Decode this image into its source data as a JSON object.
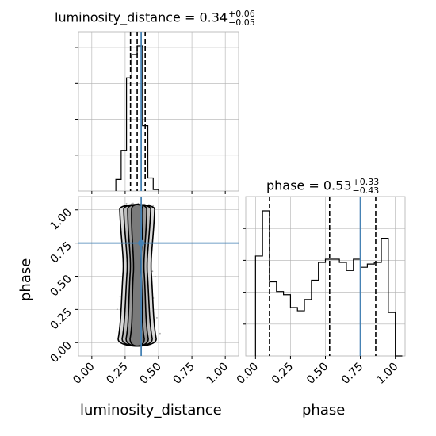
{
  "chart_data": {
    "type": "corner",
    "parameters": [
      "luminosity_distance",
      "phase"
    ],
    "injection": {
      "luminosity_distance": 0.37,
      "phase": 0.75
    },
    "colors": {
      "injection": "#4682b4",
      "hist": "#000000",
      "grid": "#b0b0b0"
    },
    "panels": [
      {
        "id": "hist-luminosity_distance",
        "type": "histogram",
        "title": {
          "name": "luminosity_distance",
          "value": "0.34",
          "plus": "+0.06",
          "minus": "−0.05"
        },
        "xlim": [
          -0.1,
          1.1
        ],
        "bin_edges": [
          0.18,
          0.22,
          0.26,
          0.3,
          0.34,
          0.38,
          0.42,
          0.46,
          0.5
        ],
        "counts": [
          0.08,
          0.28,
          0.78,
          0.94,
          1.0,
          0.45,
          0.09,
          0.01
        ],
        "quantiles": [
          0.29,
          0.34,
          0.4
        ]
      },
      {
        "id": "hist-phase",
        "type": "histogram",
        "title": {
          "name": "phase",
          "value": "0.53",
          "plus": "+0.33",
          "minus": "−0.43"
        },
        "xlim": [
          -0.07,
          1.07
        ],
        "xticks": [
          "0.00",
          "0.25",
          "0.50",
          "0.75",
          "1.00"
        ],
        "xlabel": "phase",
        "bin_edges": [
          0.0,
          0.05,
          0.1,
          0.15,
          0.2,
          0.25,
          0.3,
          0.35,
          0.4,
          0.45,
          0.5,
          0.55,
          0.6,
          0.65,
          0.7,
          0.75,
          0.8,
          0.85,
          0.9,
          0.95,
          1.0,
          1.05
        ],
        "counts": [
          0.62,
          0.9,
          0.46,
          0.4,
          0.38,
          0.3,
          0.28,
          0.35,
          0.47,
          0.58,
          0.6,
          0.6,
          0.58,
          0.53,
          0.6,
          0.55,
          0.57,
          0.58,
          0.73,
          0.27,
          0.0
        ],
        "quantiles": [
          0.1,
          0.53,
          0.86
        ]
      },
      {
        "id": "scatter-luminosity_distance-phase",
        "type": "2d-density",
        "xlim": [
          -0.1,
          1.1
        ],
        "ylim": [
          -0.1,
          1.1
        ],
        "xticks": [
          "0.00",
          "0.25",
          "0.50",
          "0.75",
          "1.00"
        ],
        "yticks": [
          "0.00",
          "0.25",
          "0.50",
          "0.75",
          "1.00"
        ],
        "xlabel": "luminosity_distance",
        "ylabel": "phase",
        "x_center": 0.34,
        "x_spread": 0.05,
        "y_range": [
          0.0,
          1.05
        ]
      }
    ]
  }
}
